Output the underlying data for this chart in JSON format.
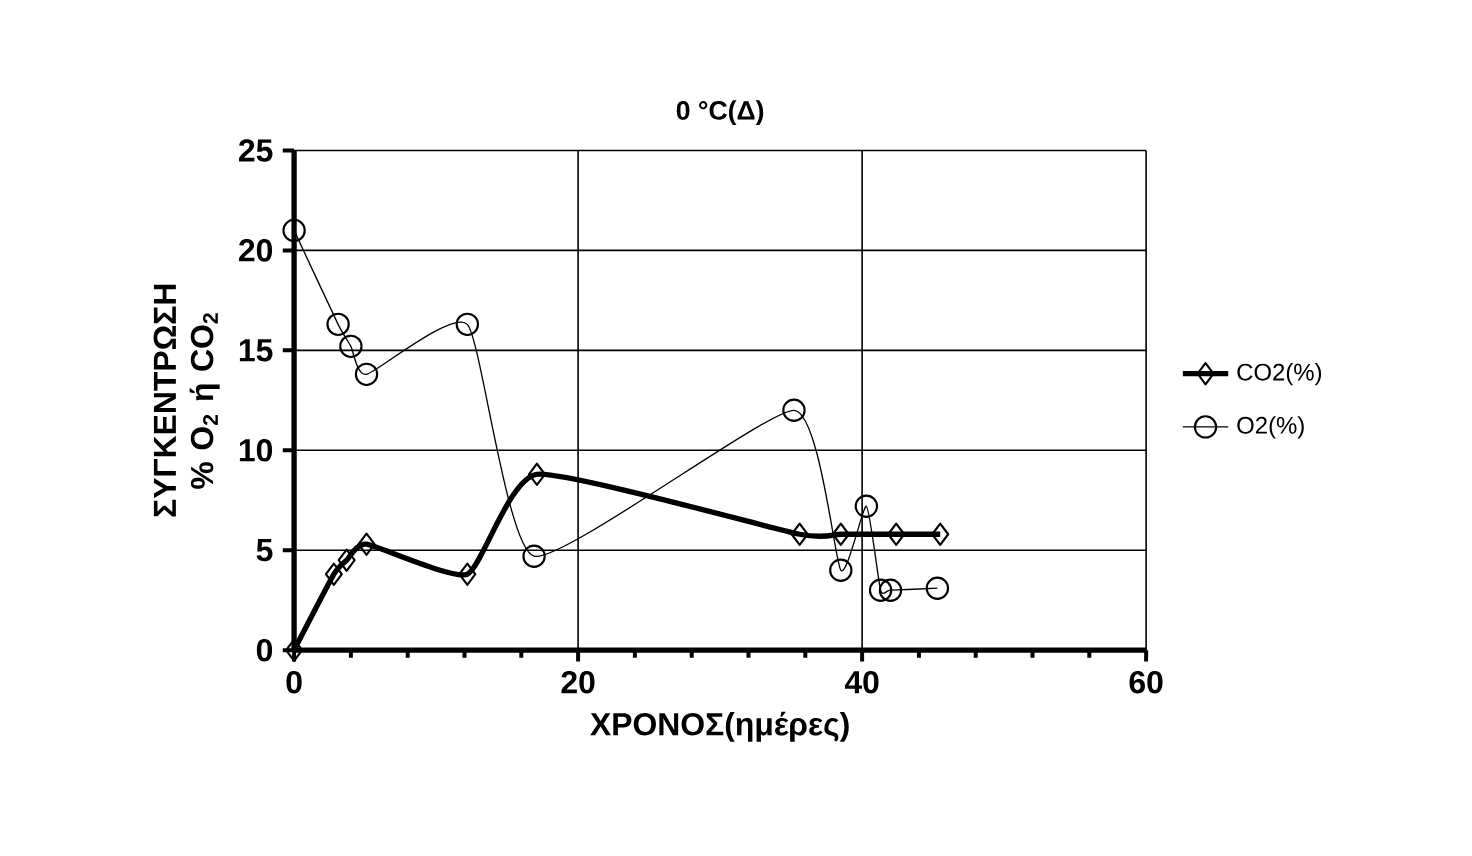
{
  "chart_data": {
    "type": "line",
    "title": "0 °C(Δ)",
    "xlabel": "ΧΡΟΝΟΣ(ημέρες)",
    "ylabel": "ΣΥΓΚΕΝΤΡΩΣΗ % O$_{2}$ ή CO$_{2}$",
    "xlim": [
      0,
      60
    ],
    "xticks": [
      0,
      20,
      40,
      60
    ],
    "ylim": [
      0,
      25
    ],
    "yticks": [
      0,
      5,
      10,
      15,
      20,
      25
    ],
    "grid": true,
    "legend": "right",
    "series": [
      {
        "name": "CO2(%)",
        "color": "#000000",
        "marker": "diamond",
        "x": [
          0,
          2.8,
          3.7,
          5.1,
          12.2,
          17.1,
          35.6,
          38.5,
          42.4,
          45.5
        ],
        "values": [
          0,
          3.8,
          4.5,
          5.3,
          3.8,
          8.8,
          5.8,
          5.8,
          5.8,
          5.8
        ]
      },
      {
        "name": "O2(%)",
        "color": "#000000",
        "marker": "circle",
        "x": [
          0,
          3.1,
          4,
          5.1,
          12.2,
          16.9,
          35.2,
          38.5,
          40.3,
          41.3,
          42,
          45.3
        ],
        "values": [
          21,
          16.3,
          15.2,
          13.8,
          16.3,
          4.7,
          12,
          4,
          7.2,
          3,
          3,
          3.1
        ]
      }
    ]
  }
}
